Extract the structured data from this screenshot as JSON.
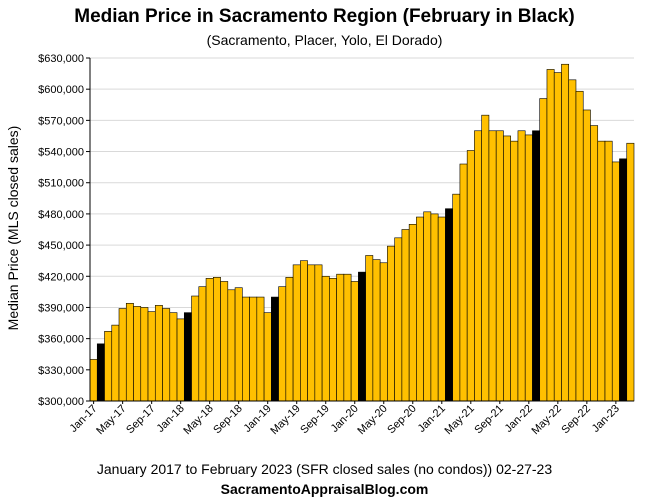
{
  "chart_data": {
    "type": "bar",
    "title": "Median Price in Sacramento Region (February in Black)",
    "subtitle": "(Sacramento, Placer,  Yolo, El Dorado)",
    "xlabel": "January 2017 to February  2023 (SFR closed sales (no condos)) 02-27-23",
    "ylabel": "Median Price (MLS closed sales)",
    "footer": "SacramentoAppraisalBlog.com",
    "ylim": [
      300000,
      630000
    ],
    "yticks": [
      300000,
      330000,
      360000,
      390000,
      420000,
      450000,
      480000,
      510000,
      540000,
      570000,
      600000,
      630000
    ],
    "ytick_labels": [
      "$300,000",
      "$330,000",
      "$360,000",
      "$390,000",
      "$420,000",
      "$450,000",
      "$480,000",
      "$510,000",
      "$540,000",
      "$570,000",
      "$600,000",
      "$630,000"
    ],
    "xtick_labels": [
      "Jan-17",
      "May-17",
      "Sep-17",
      "Jan-18",
      "May-18",
      "Sep-18",
      "Jan-19",
      "May-19",
      "Sep-19",
      "Jan-20",
      "May-20",
      "Sep-20",
      "Jan-21",
      "May-21",
      "Sep-21",
      "Jan-22",
      "May-22",
      "Sep-22",
      "Jan-23"
    ],
    "xtick_every": 4,
    "highlight": "February",
    "colors": {
      "default": "#FFC000",
      "highlight": "#000000",
      "border": "#000000"
    },
    "series": [
      {
        "name": "Median Price",
        "values": [
          340000,
          355000,
          367000,
          373000,
          389000,
          394000,
          391000,
          390000,
          386000,
          392000,
          389000,
          385000,
          379000,
          385000,
          401000,
          410000,
          418000,
          419000,
          415000,
          407000,
          409000,
          400000,
          400000,
          400000,
          385000,
          400000,
          410000,
          419000,
          431000,
          435000,
          431000,
          431000,
          420000,
          418000,
          422000,
          422000,
          415000,
          424000,
          440000,
          436000,
          433000,
          449000,
          457000,
          465000,
          470000,
          477000,
          482000,
          480000,
          477000,
          485000,
          499000,
          528000,
          541000,
          560000,
          575000,
          560000,
          560000,
          555000,
          550000,
          560000,
          556000,
          560000,
          591000,
          619000,
          616000,
          624000,
          609000,
          598000,
          580000,
          565000,
          550000,
          550000,
          530000,
          533000,
          548000
        ],
        "highlight_flags": [
          0,
          1,
          0,
          0,
          0,
          0,
          0,
          0,
          0,
          0,
          0,
          0,
          0,
          1,
          0,
          0,
          0,
          0,
          0,
          0,
          0,
          0,
          0,
          0,
          0,
          1,
          0,
          0,
          0,
          0,
          0,
          0,
          0,
          0,
          0,
          0,
          0,
          1,
          0,
          0,
          0,
          0,
          0,
          0,
          0,
          0,
          0,
          0,
          0,
          1,
          0,
          0,
          0,
          0,
          0,
          0,
          0,
          0,
          0,
          0,
          0,
          1,
          0,
          0,
          0,
          0,
          0,
          0,
          0,
          0,
          0,
          0,
          0,
          1,
          0
        ]
      }
    ]
  }
}
